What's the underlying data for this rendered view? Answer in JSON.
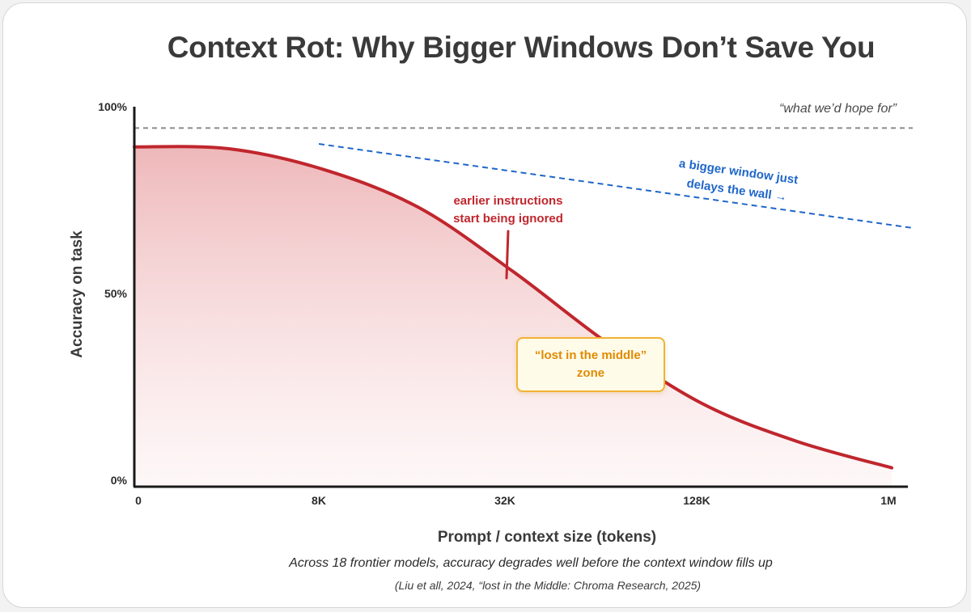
{
  "chart_data": {
    "type": "line",
    "title": "Context Rot: Why Bigger Windows Don’t Save You",
    "subtitle": "Across 18 frontier models, accuracy degrades well before the context window fills up",
    "citation": "(Liu et all, 2024, “lost in the Middle: Chroma Research, 2025)",
    "xlabel": "Prompt / context size (tokens)",
    "ylabel": "Accuracy on task",
    "x_ticks": [
      "0",
      "8K",
      "32K",
      "128K",
      "1M"
    ],
    "y_ticks": [
      "0%",
      "50%",
      "100%"
    ],
    "ylim": [
      0,
      100
    ],
    "series": [
      {
        "values": [
          [
            0,
            90
          ],
          [
            0.5,
            89.5
          ],
          [
            1,
            84
          ],
          [
            1.5,
            74
          ],
          [
            2,
            57
          ],
          [
            2.5,
            38
          ],
          [
            3,
            22
          ],
          [
            3.5,
            12
          ],
          [
            4,
            5
          ]
        ],
        "color": "#c0262d"
      }
    ],
    "reference_lines": [
      {
        "label": "“what we’d hope for”",
        "y": 95,
        "color": "#8a8a8a",
        "style": "dashed"
      },
      {
        "label_lines": [
          "a bigger window just",
          "delays the wall →"
        ],
        "from": [
          1,
          90
        ],
        "to": [
          4,
          67
        ],
        "color": "#1f66c9",
        "style": "dashed"
      }
    ],
    "annotations": [
      {
        "text_lines": [
          "earlier instructions",
          "start being ignored"
        ],
        "color": "#c0262d"
      },
      {
        "text_lines": [
          "“lost in the middle”",
          "zone"
        ],
        "color": "#e08a00"
      }
    ],
    "grid": false,
    "legend": "none"
  }
}
